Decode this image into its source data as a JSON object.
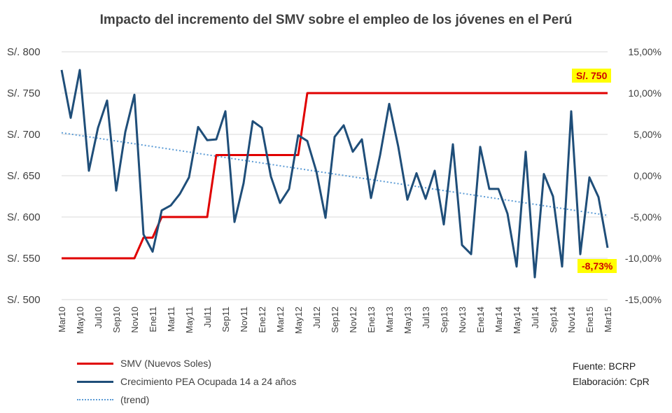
{
  "chart_data": {
    "type": "line",
    "title": "Impacto del incremento del SMV sobre el empleo de los jóvenes en el Perú",
    "left_axis": {
      "ylim": [
        500,
        800
      ],
      "ticks": [
        "S/. 800",
        "S/. 750",
        "S/. 700",
        "S/. 650",
        "S/. 600",
        "S/. 550",
        "S/. 500"
      ]
    },
    "right_axis": {
      "ylim": [
        -15,
        15
      ],
      "ticks": [
        "15,00%",
        "10,00%",
        "5,00%",
        "0,00%",
        "-5,00%",
        "-10,00%",
        "-15,00%"
      ]
    },
    "x_tick_labels": [
      "Mar10",
      "May10",
      "Jul10",
      "Sep10",
      "Nov10",
      "Ene11",
      "Mar11",
      "May11",
      "Jul11",
      "Sep11",
      "Nov11",
      "Ene12",
      "Mar12",
      "May12",
      "Jul12",
      "Sep12",
      "Nov12",
      "Ene13",
      "Mar13",
      "May13",
      "Jul13",
      "Sep13",
      "Nov13",
      "Ene14",
      "Mar14",
      "May14",
      "Jul14",
      "Sep14",
      "Nov14",
      "Ene15",
      "Mar15"
    ],
    "grid": true,
    "series": [
      {
        "name": "SMV (Nuevos Soles)",
        "axis": "left",
        "color": "#e00000",
        "values": [
          550,
          550,
          550,
          550,
          550,
          550,
          550,
          550,
          550,
          575,
          575,
          600,
          600,
          600,
          600,
          600,
          600,
          675,
          675,
          675,
          675,
          675,
          675,
          675,
          675,
          675,
          675,
          750,
          750,
          750,
          750,
          750,
          750,
          750,
          750,
          750,
          750,
          750,
          750,
          750,
          750,
          750,
          750,
          750,
          750,
          750,
          750,
          750,
          750,
          750,
          750,
          750,
          750,
          750,
          750,
          750,
          750,
          750,
          750,
          750,
          750
        ]
      },
      {
        "name": "Crecimiento PEA Ocupada 14 a 24 años",
        "axis": "right",
        "color": "#1f4e79",
        "values": [
          12.8,
          7.0,
          12.8,
          0.6,
          5.8,
          9.1,
          -1.8,
          5.3,
          9.8,
          -7.1,
          -9.2,
          -4.2,
          -3.6,
          -2.2,
          -0.2,
          5.9,
          4.3,
          4.4,
          7.8,
          -5.6,
          -0.9,
          6.6,
          5.8,
          -0.1,
          -3.3,
          -1.6,
          4.9,
          4.2,
          0.5,
          -5.1,
          4.7,
          6.1,
          2.9,
          4.4,
          -2.7,
          2.5,
          8.7,
          3.5,
          -2.9,
          0.3,
          -2.8,
          0.6,
          -5.9,
          3.8,
          -8.4,
          -9.5,
          3.5,
          -1.6,
          -1.6,
          -4.6,
          -11.0,
          2.9,
          -12.3,
          0.2,
          -2.5,
          -11.0,
          7.8,
          -9.5,
          -0.2,
          -2.6,
          -8.73
        ]
      },
      {
        "name": "(trend)",
        "axis": "right",
        "color": "#5b9bd5",
        "values": [
          5.2,
          -4.8
        ]
      }
    ],
    "annotations": [
      "S/. 750",
      "-8,73%"
    ]
  },
  "legend": {
    "smv": "SMV (Nuevos Soles)",
    "pea": "Crecimiento PEA Ocupada 14 a 24 años",
    "trend": "(trend)"
  },
  "source": {
    "line1": "Fuente: BCRP",
    "line2": "Elaboración: CpR"
  },
  "colors": {
    "smv": "#e00000",
    "pea": "#1f4e79",
    "trend": "#5b9bd5",
    "callout_bg": "#ffff00"
  }
}
